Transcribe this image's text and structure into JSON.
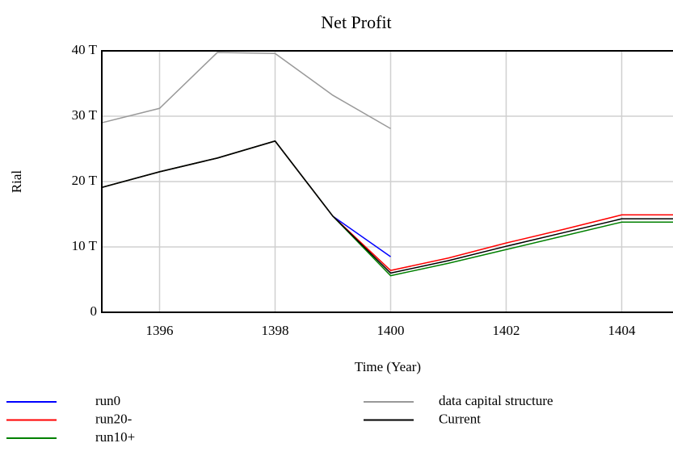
{
  "chart_data": {
    "type": "line",
    "title": "Net Profit",
    "y_label": "Rial",
    "x_label": "Time (Year)",
    "x": [
      1395,
      1396,
      1397,
      1398,
      1399,
      1400,
      1401,
      1402,
      1403,
      1404,
      1405
    ],
    "xlim": [
      1395,
      1405
    ],
    "xticks": [
      1396,
      1398,
      1400,
      1402,
      1404
    ],
    "ylim": [
      0,
      40
    ],
    "yticks": [
      {
        "value": 0,
        "label": "0"
      },
      {
        "value": 10,
        "label": "10 T"
      },
      {
        "value": 20,
        "label": "20 T"
      },
      {
        "value": 30,
        "label": "30 T"
      },
      {
        "value": 40,
        "label": "40 T"
      }
    ],
    "grid": true,
    "series": [
      {
        "name": "run0",
        "color": "#0000ff",
        "values": [
          19.1,
          21.5,
          23.6,
          26.2,
          14.7,
          8.5,
          null,
          null,
          null,
          null,
          null
        ]
      },
      {
        "name": "run20-",
        "color": "#ff0000",
        "values": [
          19.1,
          21.5,
          23.6,
          26.2,
          14.7,
          6.4,
          8.3,
          10.6,
          12.7,
          14.9,
          14.9
        ]
      },
      {
        "name": "run10+",
        "color": "#008000",
        "values": [
          19.1,
          21.5,
          23.6,
          26.2,
          14.7,
          5.6,
          7.5,
          9.6,
          11.7,
          13.8,
          13.8
        ]
      },
      {
        "name": "data capital structure",
        "color": "#999999",
        "values": [
          29.0,
          31.2,
          39.75,
          39.6,
          33.2,
          28.1,
          null,
          null,
          null,
          null,
          null
        ]
      },
      {
        "name": "Current",
        "color": "#000000",
        "values": [
          19.1,
          21.5,
          23.6,
          26.2,
          14.7,
          6.0,
          7.9,
          10.1,
          12.2,
          14.3,
          14.3
        ]
      }
    ]
  }
}
